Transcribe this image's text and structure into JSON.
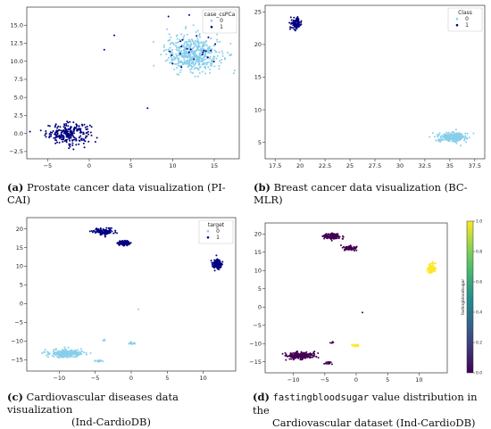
{
  "colors": {
    "light": "#87ceeb",
    "dark": "#000080",
    "axis": "#333333"
  },
  "captions": {
    "a": {
      "letter": "(a)",
      "text": " Prostate cancer data visualization (PI-CAI)"
    },
    "b": {
      "letter": "(b)",
      "text": " Breast cancer data visualization (BC-MLR)"
    },
    "c": {
      "letter": "(c)",
      "text": " Cardiovascular diseases data visualization (Ind-CardioDB)",
      "line1": " Cardiovascular diseases data visualization",
      "line2": "(Ind-CardioDB)"
    },
    "d": {
      "letter": "(d)",
      "mono": "fastingbloodsugar",
      "line1": " value distribution in the",
      "line2": "Cardiovascular dataset (Ind-CardioDB)"
    }
  },
  "chart_data": [
    {
      "id": "a",
      "type": "scatter",
      "xlim": [
        -7.5,
        18
      ],
      "ylim": [
        -3.5,
        17.5
      ],
      "xticks": [
        -5,
        0,
        5,
        10,
        15
      ],
      "yticks": [
        -2.5,
        0.0,
        2.5,
        5.0,
        7.5,
        10.0,
        12.5,
        15.0
      ],
      "ytick_labels": [
        "−2.5",
        "0.0",
        "2.5",
        "5.0",
        "7.5",
        "10.0",
        "12.5",
        "15.0"
      ],
      "legend": {
        "title": "case_csPCa",
        "entries": [
          "0",
          "1"
        ],
        "position": "top-right"
      },
      "clusters": [
        {
          "cls": 1,
          "cx": -2.5,
          "cy": 0.0,
          "sx": 2.4,
          "sy": 1.3,
          "n": 240
        },
        {
          "cls": 0,
          "cx": 12.5,
          "cy": 11.0,
          "sx": 3.0,
          "sy": 2.3,
          "n": 520
        },
        {
          "cls": 1,
          "cx": 12.5,
          "cy": 11.0,
          "sx": 3.0,
          "sy": 2.5,
          "n": 22
        }
      ],
      "points": [
        {
          "cls": 1,
          "x": 1.8,
          "y": 11.6
        },
        {
          "cls": 1,
          "x": 3.0,
          "y": 13.6
        },
        {
          "cls": 1,
          "x": 7.0,
          "y": 3.5
        },
        {
          "cls": 1,
          "x": 9.5,
          "y": 16.2
        },
        {
          "cls": 1,
          "x": 12.0,
          "y": 16.4
        }
      ]
    },
    {
      "id": "b",
      "type": "scatter",
      "xlim": [
        16.5,
        38.5
      ],
      "ylim": [
        2.5,
        26
      ],
      "xticks": [
        17.5,
        20.0,
        22.5,
        25.0,
        27.5,
        30.0,
        32.5,
        35.0,
        37.5
      ],
      "yticks": [
        5,
        10,
        15,
        20,
        25
      ],
      "legend": {
        "title": "Class",
        "entries": [
          "0",
          "1"
        ],
        "position": "top-right"
      },
      "clusters": [
        {
          "cls": 1,
          "cx": 19.6,
          "cy": 23.2,
          "sx": 0.5,
          "sy": 0.8,
          "n": 90
        },
        {
          "cls": 0,
          "cx": 35.2,
          "cy": 5.8,
          "sx": 1.3,
          "sy": 0.65,
          "n": 260
        }
      ],
      "points": []
    },
    {
      "id": "c",
      "type": "scatter",
      "xlim": [
        -14.5,
        14.5
      ],
      "ylim": [
        -18,
        23
      ],
      "xticks": [
        -10,
        -5,
        0,
        5,
        10
      ],
      "yticks": [
        -15,
        -10,
        -5,
        0,
        5,
        10,
        15,
        20
      ],
      "ytick_labels": [
        "−15",
        "−10",
        "−5",
        "0",
        "5",
        "10",
        "15",
        "20"
      ],
      "xtick_labels": [
        "−10",
        "−5",
        "0",
        "5",
        "10"
      ],
      "legend": {
        "title": "target",
        "entries": [
          "0",
          "1"
        ],
        "position": "top-right"
      },
      "clusters": [
        {
          "cls": 1,
          "cx": -3.8,
          "cy": 19.3,
          "sx": 1.3,
          "sy": 0.8,
          "n": 120
        },
        {
          "cls": 1,
          "cx": -1.0,
          "cy": 16.2,
          "sx": 0.9,
          "sy": 0.6,
          "n": 90
        },
        {
          "cls": 1,
          "cx": 12.0,
          "cy": 10.6,
          "sx": 0.6,
          "sy": 1.2,
          "n": 120
        },
        {
          "cls": 0,
          "cx": -9.0,
          "cy": -13.3,
          "sx": 2.1,
          "sy": 0.9,
          "n": 230
        },
        {
          "cls": 0,
          "cx": 0.0,
          "cy": -10.5,
          "sx": 0.5,
          "sy": 0.3,
          "n": 16
        },
        {
          "cls": 0,
          "cx": -4.5,
          "cy": -15.3,
          "sx": 0.7,
          "sy": 0.3,
          "n": 14
        },
        {
          "cls": 0,
          "cx": -3.8,
          "cy": -9.8,
          "sx": 0.2,
          "sy": 0.2,
          "n": 5
        }
      ],
      "points": [
        {
          "cls": 0,
          "x": 1.0,
          "y": -1.5
        }
      ]
    },
    {
      "id": "d",
      "type": "scatter",
      "xlim": [
        -14.5,
        14.5
      ],
      "ylim": [
        -18,
        23
      ],
      "xticks": [
        -10,
        -5,
        0,
        5,
        10
      ],
      "yticks": [
        -15,
        -10,
        -5,
        0,
        5,
        10,
        15,
        20
      ],
      "ytick_labels": [
        "−15",
        "−10",
        "−5",
        "0",
        "5",
        "10",
        "15",
        "20"
      ],
      "xtick_labels": [
        "−10",
        "−5",
        "0",
        "5",
        "10"
      ],
      "colorbar": {
        "label": "fastingbloodsugar",
        "ticks": [
          0.0,
          0.2,
          0.4,
          0.6,
          0.8,
          1.0
        ],
        "tick_labels": [
          "0.0",
          "0.2",
          "0.4",
          "0.6",
          "0.8",
          "1.0"
        ],
        "cmap": "viridis"
      },
      "clusters": [
        {
          "cls": 0,
          "cx": -3.8,
          "cy": 19.3,
          "sx": 1.3,
          "sy": 0.8,
          "n": 120
        },
        {
          "cls": 0,
          "cx": -1.0,
          "cy": 16.2,
          "sx": 0.9,
          "sy": 0.6,
          "n": 90
        },
        {
          "cls": 1,
          "cx": 12.0,
          "cy": 10.6,
          "sx": 0.6,
          "sy": 1.2,
          "n": 120
        },
        {
          "cls": 0,
          "cx": -9.0,
          "cy": -13.3,
          "sx": 2.1,
          "sy": 0.9,
          "n": 230
        },
        {
          "cls": 1,
          "cx": 0.0,
          "cy": -10.5,
          "sx": 0.5,
          "sy": 0.3,
          "n": 16
        },
        {
          "cls": 0,
          "cx": -4.5,
          "cy": -15.3,
          "sx": 0.7,
          "sy": 0.3,
          "n": 14
        },
        {
          "cls": 0,
          "cx": -3.8,
          "cy": -9.8,
          "sx": 0.2,
          "sy": 0.2,
          "n": 5
        }
      ],
      "points": [
        {
          "cls": 0,
          "x": 1.0,
          "y": -1.5
        }
      ]
    }
  ]
}
